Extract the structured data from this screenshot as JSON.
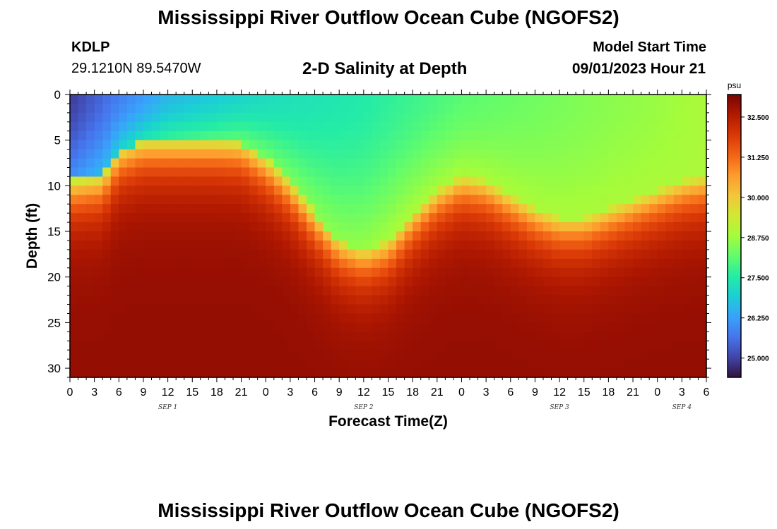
{
  "header": {
    "title": "Mississippi River Outflow Ocean Cube (NGOFS2)",
    "station_id": "KDLP",
    "station_coords": "29.1210N  89.5470W",
    "subtitle": "2-D Salinity at Depth",
    "model_start_label": "Model Start Time",
    "model_start_value": "09/01/2023 Hour 21"
  },
  "footer": {
    "title": "Mississippi River Outflow Ocean Cube (NGOFS2)"
  },
  "chart_data": {
    "type": "heatmap",
    "title": "2-D Salinity at Depth",
    "xlabel": "Forecast Time(Z)",
    "ylabel": "Depth (ft)",
    "x_range_hours": [
      0,
      78
    ],
    "x_ticks": [
      {
        "hour": 0,
        "label": "0"
      },
      {
        "hour": 3,
        "label": "3"
      },
      {
        "hour": 6,
        "label": "6"
      },
      {
        "hour": 9,
        "label": "9"
      },
      {
        "hour": 12,
        "label": "12"
      },
      {
        "hour": 15,
        "label": "15"
      },
      {
        "hour": 18,
        "label": "18"
      },
      {
        "hour": 21,
        "label": "21"
      },
      {
        "hour": 24,
        "label": "0"
      },
      {
        "hour": 27,
        "label": "3"
      },
      {
        "hour": 30,
        "label": "6"
      },
      {
        "hour": 33,
        "label": "9"
      },
      {
        "hour": 36,
        "label": "12"
      },
      {
        "hour": 39,
        "label": "15"
      },
      {
        "hour": 42,
        "label": "18"
      },
      {
        "hour": 45,
        "label": "21"
      },
      {
        "hour": 48,
        "label": "0"
      },
      {
        "hour": 51,
        "label": "3"
      },
      {
        "hour": 54,
        "label": "6"
      },
      {
        "hour": 57,
        "label": "9"
      },
      {
        "hour": 60,
        "label": "12"
      },
      {
        "hour": 63,
        "label": "15"
      },
      {
        "hour": 66,
        "label": "18"
      },
      {
        "hour": 69,
        "label": "21"
      },
      {
        "hour": 72,
        "label": "0"
      },
      {
        "hour": 75,
        "label": "3"
      },
      {
        "hour": 78,
        "label": "6"
      }
    ],
    "date_labels": [
      {
        "hour": 12,
        "label": "SEP 1"
      },
      {
        "hour": 36,
        "label": "SEP 2"
      },
      {
        "hour": 60,
        "label": "SEP 3"
      },
      {
        "hour": 75,
        "label": "SEP 4"
      }
    ],
    "y_range_ft": [
      0,
      31
    ],
    "y_ticks": [
      0,
      5,
      10,
      15,
      20,
      25,
      30
    ],
    "colorbar": {
      "unit": "psu",
      "range": [
        24.4,
        33.2
      ],
      "ticks": [
        "25.000",
        "26.250",
        "27.500",
        "28.750",
        "30.000",
        "31.250",
        "32.500"
      ],
      "colors": [
        "#30123b",
        "#4145ab",
        "#4675ed",
        "#39a2fc",
        "#1bcfd4",
        "#24eca6",
        "#61fc6c",
        "#a4fc3b",
        "#d1e834",
        "#f3c63a",
        "#fe9b2d",
        "#f36315",
        "#d93806",
        "#b11901",
        "#7a0403"
      ]
    },
    "halocline_profile": {
      "description": "approximate depth (ft) of the ~29.5 psu isohaline over time",
      "hours": [
        0,
        4,
        6,
        9,
        12,
        18,
        21,
        24,
        27,
        30,
        33,
        36,
        39,
        42,
        45,
        48,
        51,
        54,
        57,
        60,
        63,
        66,
        69,
        72,
        75,
        78
      ],
      "depth_ft": [
        9.5,
        9.0,
        6.0,
        5.0,
        5.0,
        5.0,
        5.2,
        7.0,
        9.5,
        13.0,
        16.0,
        17.0,
        16.0,
        13.0,
        10.5,
        9.0,
        9.5,
        11.0,
        12.5,
        13.5,
        13.5,
        12.5,
        11.5,
        10.5,
        9.5,
        9.0
      ]
    },
    "surface_salinity_psu": {
      "hours": [
        0,
        6,
        12,
        24,
        36,
        48,
        60,
        72,
        78
      ],
      "values": [
        24.9,
        25.8,
        26.6,
        27.2,
        27.5,
        28.1,
        28.4,
        28.7,
        28.9
      ]
    },
    "bottom_salinity_psu": 32.9
  }
}
